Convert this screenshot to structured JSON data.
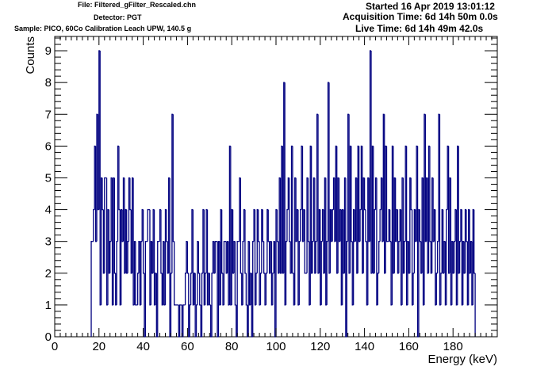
{
  "header": {
    "file": "File: Filtered_gFilter_Rescaled.chn",
    "detector": "Detector: PGT",
    "sample": "Sample: PICO, 60Co Calibration Leach UPW, 140.5 g",
    "started": "Started 16 Apr 2019 13:01:12",
    "acquisition_time": "Acquisition Time: 6d 14h 50m 0.0s",
    "live_time": "Live Time: 6d 14h 49m 42.0s"
  },
  "chart_data": {
    "type": "histogram",
    "xlabel": "Energy (keV)",
    "ylabel": "Counts",
    "xlim": [
      0,
      200
    ],
    "ylim": [
      0,
      9.45
    ],
    "xticks": [
      0,
      20,
      40,
      60,
      80,
      100,
      120,
      140,
      160,
      180
    ],
    "yticks": [
      0,
      1,
      2,
      3,
      4,
      5,
      6,
      7,
      8,
      9
    ],
    "line_color": "#000080",
    "bin_start": 16.5,
    "bin_width": 0.5,
    "counts": [
      3,
      3,
      4,
      6,
      3,
      7,
      4,
      9,
      1,
      5,
      4,
      2,
      5,
      5,
      1,
      4,
      2,
      3,
      5,
      1,
      5,
      2,
      1,
      3,
      6,
      4,
      1,
      4,
      3,
      5,
      2,
      4,
      2,
      3,
      5,
      4,
      2,
      5,
      1,
      3,
      1,
      1,
      2,
      3,
      1,
      3,
      4,
      2,
      0,
      3,
      3,
      4,
      4,
      1,
      3,
      2,
      4,
      1,
      2,
      0,
      3,
      3,
      4,
      2,
      1,
      3,
      1,
      4,
      3,
      2,
      5,
      0,
      2,
      7,
      3,
      1,
      1,
      1,
      1,
      0,
      1,
      1,
      0,
      1,
      1,
      2,
      3,
      2,
      0,
      1,
      2,
      4,
      1,
      2,
      0,
      1,
      3,
      2,
      1,
      0,
      2,
      4,
      1,
      2,
      4,
      1,
      2,
      1,
      0,
      2,
      3,
      2,
      3,
      3,
      0,
      3,
      1,
      4,
      2,
      1,
      3,
      3,
      2,
      3,
      1,
      6,
      1,
      4,
      2,
      3,
      1,
      0,
      3,
      3,
      5,
      2,
      1,
      3,
      4,
      2,
      1,
      0,
      3,
      1,
      2,
      0,
      3,
      4,
      1,
      2,
      4,
      3,
      1,
      2,
      4,
      3,
      2,
      1,
      2,
      4,
      3,
      2,
      3,
      1,
      2,
      3,
      0,
      4,
      3,
      2,
      5,
      2,
      6,
      2,
      8,
      1,
      3,
      4,
      5,
      3,
      2,
      6,
      2,
      1,
      5,
      3,
      4,
      1,
      3,
      4,
      6,
      3,
      4,
      2,
      2,
      5,
      3,
      1,
      6,
      2,
      3,
      5,
      2,
      3,
      7,
      2,
      4,
      1,
      3,
      4,
      2,
      5,
      1,
      3,
      8,
      2,
      4,
      3,
      4,
      5,
      3,
      6,
      2,
      5,
      3,
      4,
      1,
      4,
      2,
      5,
      0,
      3,
      7,
      2,
      6,
      3,
      1,
      4,
      3,
      5,
      2,
      6,
      3,
      4,
      6,
      2,
      5,
      4,
      3,
      1,
      5,
      3,
      9,
      2,
      6,
      2,
      4,
      5,
      1,
      2,
      3,
      4,
      5,
      3,
      7,
      2,
      6,
      3,
      3,
      4,
      3,
      1,
      6,
      2,
      5,
      3,
      4,
      2,
      3,
      4,
      1,
      5,
      2,
      3,
      6,
      1,
      3,
      2,
      5,
      4,
      1,
      2,
      4,
      3,
      6,
      0,
      4,
      3,
      2,
      5,
      1,
      7,
      3,
      5,
      2,
      6,
      3,
      2,
      5,
      3,
      4,
      1,
      2,
      3,
      7,
      1,
      2,
      4,
      2,
      3,
      1,
      4,
      6,
      2,
      5,
      1,
      3,
      2,
      3,
      4,
      1,
      6,
      2,
      3,
      4,
      1,
      3,
      2,
      4,
      3,
      1,
      4,
      2,
      3,
      1,
      4,
      2
    ]
  }
}
